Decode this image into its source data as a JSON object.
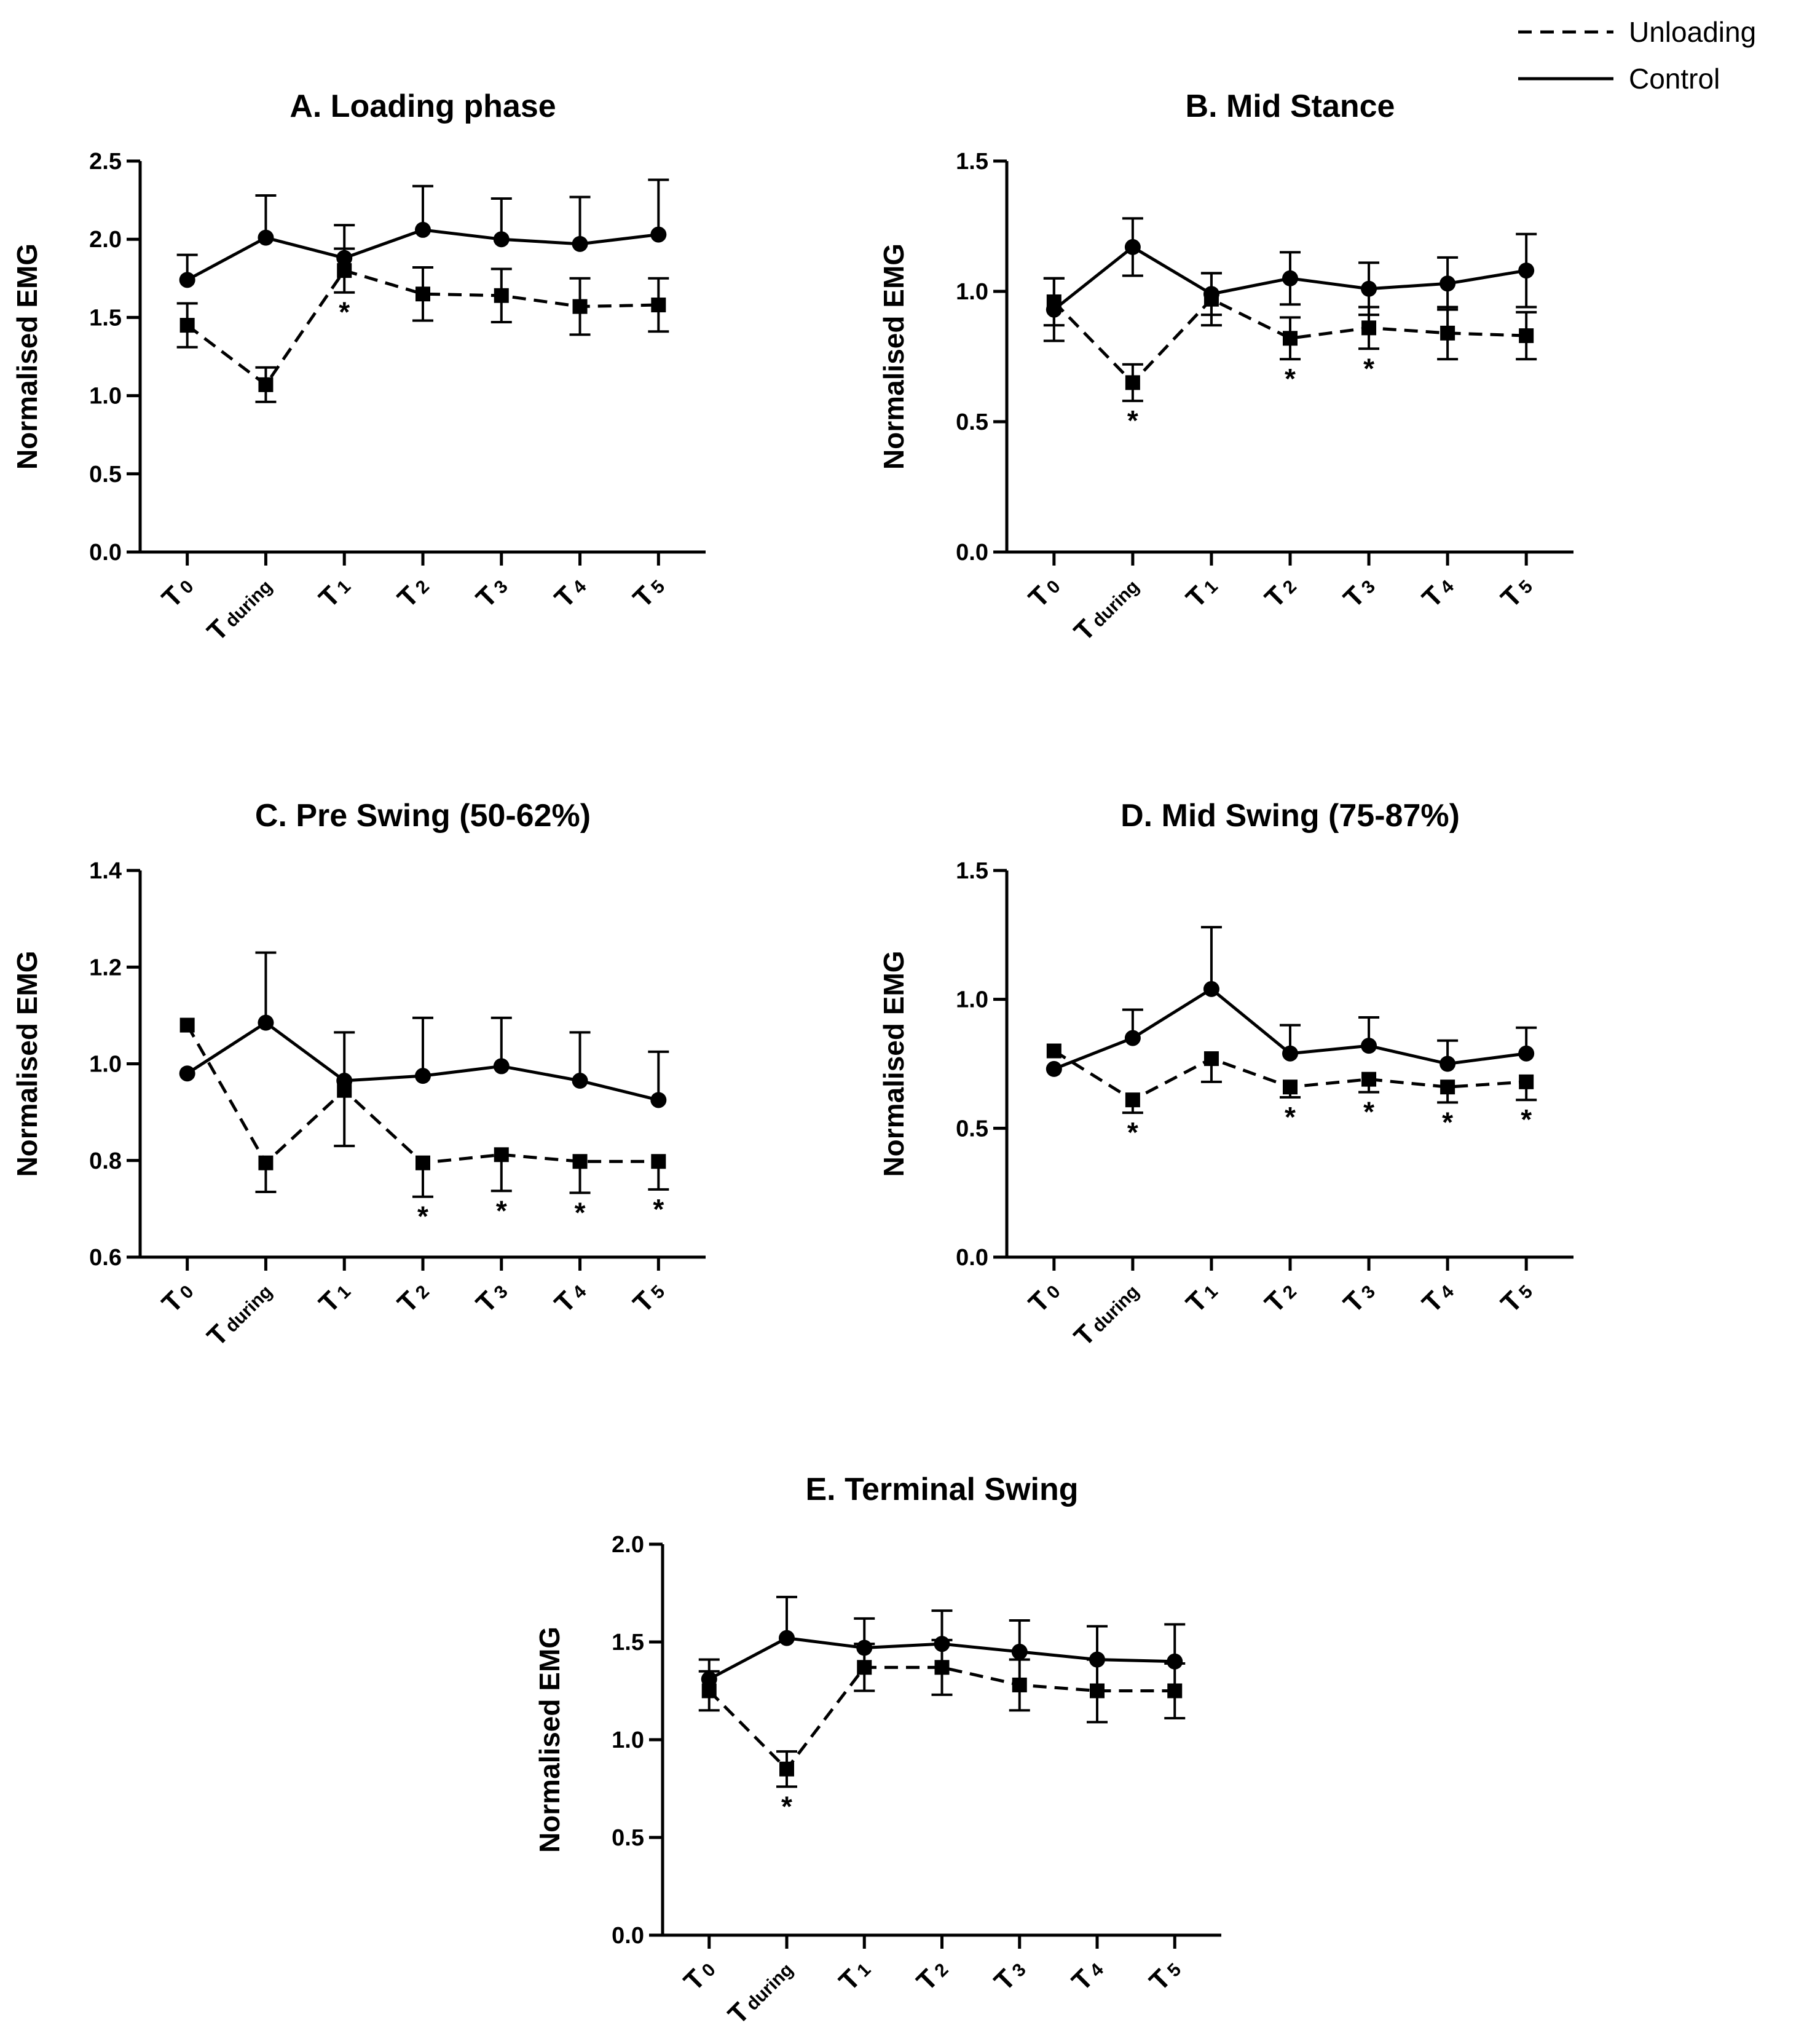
{
  "legend": {
    "items": [
      {
        "label": "Unloading",
        "style": "dashed"
      },
      {
        "label": "Control",
        "style": "solid"
      }
    ],
    "placement": "top-right"
  },
  "chart_data": [
    {
      "type": "line",
      "title": "A. Loading phase",
      "ylabel": "Normalised EMG",
      "ylim": [
        0,
        2.5
      ],
      "yticks": [
        "0.0",
        "0.5",
        "1.0",
        "1.5",
        "2.0",
        "2.5"
      ],
      "categories": [
        {
          "main": "T",
          "sub": "0"
        },
        {
          "main": "T",
          "sub": "during"
        },
        {
          "main": "T",
          "sub": "1"
        },
        {
          "main": "T",
          "sub": "2"
        },
        {
          "main": "T",
          "sub": "3"
        },
        {
          "main": "T",
          "sub": "4"
        },
        {
          "main": "T",
          "sub": "5"
        }
      ],
      "series": [
        {
          "name": "Control",
          "marker": "circle",
          "values": [
            1.74,
            2.01,
            1.88,
            2.06,
            2.0,
            1.97,
            2.03
          ],
          "errors": [
            0.16,
            0.27,
            0.21,
            0.28,
            0.26,
            0.3,
            0.35
          ],
          "err_dir": "up"
        },
        {
          "name": "Unloading",
          "marker": "square",
          "values": [
            1.45,
            1.07,
            1.8,
            1.65,
            1.64,
            1.57,
            1.58
          ],
          "errors": [
            0.14,
            0.11,
            0.14,
            0.17,
            0.17,
            0.18,
            0.17
          ],
          "err_dir": "both"
        }
      ],
      "significant": [
        {
          "x": 2,
          "label": "*"
        }
      ]
    },
    {
      "type": "line",
      "title": "B. Mid Stance",
      "ylabel": "Normalised EMG",
      "ylim": [
        0,
        1.5
      ],
      "yticks": [
        "0.0",
        "0.5",
        "1.0",
        "1.5"
      ],
      "categories": [
        {
          "main": "T",
          "sub": "0"
        },
        {
          "main": "T",
          "sub": "during"
        },
        {
          "main": "T",
          "sub": "1"
        },
        {
          "main": "T",
          "sub": "2"
        },
        {
          "main": "T",
          "sub": "3"
        },
        {
          "main": "T",
          "sub": "4"
        },
        {
          "main": "T",
          "sub": "5"
        }
      ],
      "series": [
        {
          "name": "Control",
          "marker": "circle",
          "values": [
            0.93,
            1.17,
            0.99,
            1.05,
            1.01,
            1.03,
            1.08
          ],
          "errors": [
            0.12,
            0.11,
            0.08,
            0.1,
            0.1,
            0.1,
            0.14
          ],
          "err_dir": "both"
        },
        {
          "name": "Unloading",
          "marker": "square",
          "values": [
            0.96,
            0.65,
            0.97,
            0.82,
            0.86,
            0.84,
            0.83
          ],
          "errors": [
            0.09,
            0.07,
            0.1,
            0.08,
            0.08,
            0.1,
            0.09
          ],
          "err_dir": "both"
        }
      ],
      "significant": [
        {
          "x": 1,
          "label": "*"
        },
        {
          "x": 3,
          "label": "*"
        },
        {
          "x": 4,
          "label": "*"
        }
      ]
    },
    {
      "type": "line",
      "title": "C. Pre Swing (50-62%)",
      "ylabel": "Normalised EMG",
      "ylim": [
        0.6,
        1.4
      ],
      "yticks": [
        "0.6",
        "0.8",
        "1.0",
        "1.2",
        "1.4"
      ],
      "categories": [
        {
          "main": "T",
          "sub": "0"
        },
        {
          "main": "T",
          "sub": "during"
        },
        {
          "main": "T",
          "sub": "1"
        },
        {
          "main": "T",
          "sub": "2"
        },
        {
          "main": "T",
          "sub": "3"
        },
        {
          "main": "T",
          "sub": "4"
        },
        {
          "main": "T",
          "sub": "5"
        }
      ],
      "series": [
        {
          "name": "Control",
          "marker": "circle",
          "values": [
            0.98,
            1.085,
            0.965,
            0.975,
            0.995,
            0.965,
            0.925
          ],
          "errors": [
            0.0,
            0.145,
            0.1,
            0.12,
            0.1,
            0.1,
            0.1
          ],
          "err_dir": "up"
        },
        {
          "name": "Unloading",
          "marker": "square",
          "values": [
            1.08,
            0.795,
            0.945,
            0.795,
            0.812,
            0.798,
            0.798
          ],
          "errors": [
            0.0,
            0.06,
            0.115,
            0.07,
            0.075,
            0.065,
            0.058
          ],
          "err_dir": "down"
        }
      ],
      "significant": [
        {
          "x": 3,
          "label": "*"
        },
        {
          "x": 4,
          "label": "*"
        },
        {
          "x": 5,
          "label": "*"
        },
        {
          "x": 6,
          "label": "*"
        }
      ]
    },
    {
      "type": "line",
      "title": "D. Mid Swing  (75-87%)",
      "ylabel": "Normalised EMG",
      "ylim": [
        0,
        1.5
      ],
      "yticks": [
        "0.0",
        "0.5",
        "1.0",
        "1.5"
      ],
      "categories": [
        {
          "main": "T",
          "sub": "0"
        },
        {
          "main": "T",
          "sub": "during"
        },
        {
          "main": "T",
          "sub": "1"
        },
        {
          "main": "T",
          "sub": "2"
        },
        {
          "main": "T",
          "sub": "3"
        },
        {
          "main": "T",
          "sub": "4"
        },
        {
          "main": "T",
          "sub": "5"
        }
      ],
      "series": [
        {
          "name": "Control",
          "marker": "circle",
          "values": [
            0.73,
            0.85,
            1.04,
            0.79,
            0.82,
            0.75,
            0.79
          ],
          "errors": [
            0.0,
            0.11,
            0.24,
            0.11,
            0.11,
            0.09,
            0.1
          ],
          "err_dir": "up"
        },
        {
          "name": "Unloading",
          "marker": "square",
          "values": [
            0.8,
            0.61,
            0.77,
            0.66,
            0.69,
            0.66,
            0.68
          ],
          "errors": [
            0.0,
            0.05,
            0.09,
            0.04,
            0.05,
            0.06,
            0.07
          ],
          "err_dir": "down"
        }
      ],
      "significant": [
        {
          "x": 1,
          "label": "*"
        },
        {
          "x": 3,
          "label": "*"
        },
        {
          "x": 4,
          "label": "*"
        },
        {
          "x": 5,
          "label": "*"
        },
        {
          "x": 6,
          "label": "*"
        }
      ]
    },
    {
      "type": "line",
      "title": "E. Terminal Swing",
      "ylabel": "Normalised EMG",
      "ylim": [
        0,
        2.0
      ],
      "yticks": [
        "0.0",
        "0.5",
        "1.0",
        "1.5",
        "2.0"
      ],
      "categories": [
        {
          "main": "T",
          "sub": "0"
        },
        {
          "main": "T",
          "sub": "during"
        },
        {
          "main": "T",
          "sub": "1"
        },
        {
          "main": "T",
          "sub": "2"
        },
        {
          "main": "T",
          "sub": "3"
        },
        {
          "main": "T",
          "sub": "4"
        },
        {
          "main": "T",
          "sub": "5"
        }
      ],
      "series": [
        {
          "name": "Control",
          "marker": "circle",
          "values": [
            1.31,
            1.52,
            1.47,
            1.49,
            1.45,
            1.41,
            1.4
          ],
          "errors": [
            0.1,
            0.21,
            0.15,
            0.17,
            0.16,
            0.17,
            0.19
          ],
          "err_dir": "up"
        },
        {
          "name": "Unloading",
          "marker": "square",
          "values": [
            1.25,
            0.85,
            1.37,
            1.37,
            1.28,
            1.25,
            1.25
          ],
          "errors": [
            0.1,
            0.09,
            0.12,
            0.14,
            0.13,
            0.16,
            0.14
          ],
          "err_dir": "both"
        }
      ],
      "significant": [
        {
          "x": 1,
          "label": "*"
        }
      ]
    }
  ]
}
